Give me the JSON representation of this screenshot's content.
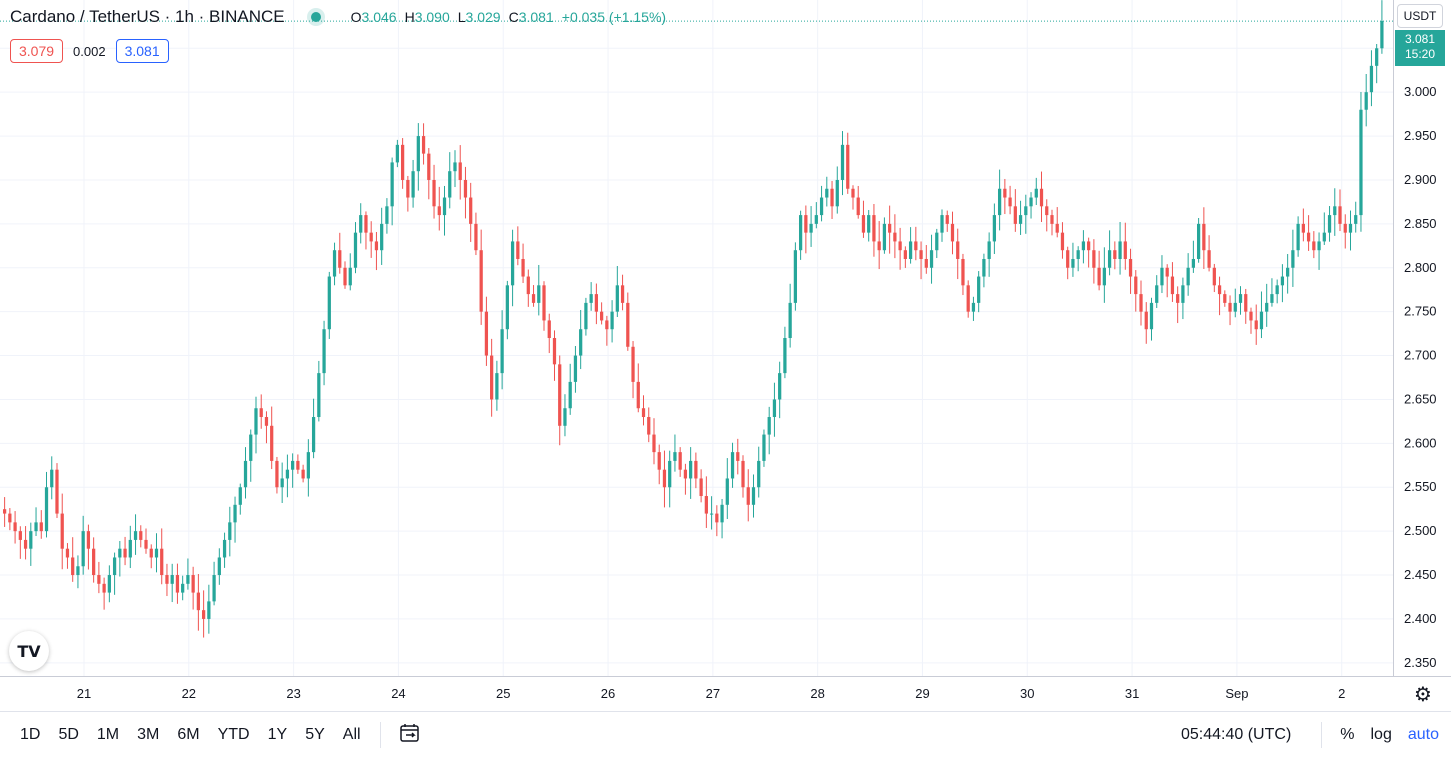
{
  "header": {
    "symbol": "Cardano / TetherUS · 1h · BINANCE",
    "ohlc": {
      "o_label": "O",
      "o_value": "3.046",
      "h_label": "H",
      "h_value": "3.090",
      "l_label": "L",
      "l_value": "3.029",
      "c_label": "C",
      "c_value": "3.081",
      "change": "+0.035 (+1.15%)"
    }
  },
  "quote": {
    "bid": "3.079",
    "spread": "0.002",
    "ask": "3.081"
  },
  "axis": {
    "currency": "USDT",
    "last_price": "3.081",
    "countdown": "15:20"
  },
  "logo": {
    "icon": "tradingview-logo-icon"
  },
  "bottom_bar": {
    "ranges": [
      "1D",
      "5D",
      "1M",
      "3M",
      "6M",
      "YTD",
      "1Y",
      "5Y",
      "All"
    ],
    "calendar_icon": "calendar-range-icon",
    "clock": "05:44:40 (UTC)",
    "percent": "%",
    "log": "log",
    "auto": "auto",
    "settings_icon": "gear-icon"
  },
  "colors": {
    "up": "#26a69a",
    "down": "#ef5350",
    "grid": "#f0f3fa",
    "accent": "#2962ff"
  },
  "chart_data": {
    "type": "candlestick",
    "symbol": "ADAUSDT",
    "interval": "1h",
    "y_ticks": [
      2.35,
      2.4,
      2.45,
      2.5,
      2.55,
      2.6,
      2.65,
      2.7,
      2.75,
      2.8,
      2.85,
      2.9,
      2.95,
      3.0,
      3.05
    ],
    "y_tick_labels": [
      "2.350",
      "2.400",
      "2.450",
      "2.500",
      "2.550",
      "2.600",
      "2.650",
      "2.700",
      "2.750",
      "2.800",
      "2.850",
      "2.900",
      "2.950",
      "3.000",
      "3.050"
    ],
    "ylim": [
      2.335,
      3.105
    ],
    "x_tick_labels": [
      "21",
      "22",
      "23",
      "24",
      "25",
      "26",
      "27",
      "28",
      "29",
      "30",
      "31",
      "Sep",
      "2"
    ],
    "x_tick_hours": [
      0,
      24,
      48,
      72,
      96,
      120,
      144,
      168,
      192,
      216,
      240,
      264,
      288
    ],
    "first_candle_hour": -20,
    "last_price": 3.081,
    "closes": [
      2.52,
      2.51,
      2.5,
      2.49,
      2.48,
      2.5,
      2.51,
      2.5,
      2.55,
      2.57,
      2.52,
      2.48,
      2.47,
      2.45,
      2.46,
      2.5,
      2.48,
      2.45,
      2.44,
      2.43,
      2.45,
      2.47,
      2.48,
      2.47,
      2.49,
      2.5,
      2.49,
      2.48,
      2.47,
      2.48,
      2.45,
      2.44,
      2.45,
      2.43,
      2.44,
      2.45,
      2.43,
      2.41,
      2.4,
      2.42,
      2.45,
      2.47,
      2.49,
      2.51,
      2.53,
      2.55,
      2.58,
      2.61,
      2.64,
      2.63,
      2.62,
      2.58,
      2.55,
      2.56,
      2.57,
      2.58,
      2.57,
      2.56,
      2.59,
      2.63,
      2.68,
      2.73,
      2.79,
      2.82,
      2.8,
      2.78,
      2.8,
      2.84,
      2.86,
      2.84,
      2.83,
      2.82,
      2.85,
      2.87,
      2.92,
      2.94,
      2.9,
      2.88,
      2.91,
      2.95,
      2.93,
      2.9,
      2.87,
      2.86,
      2.88,
      2.91,
      2.92,
      2.9,
      2.88,
      2.85,
      2.82,
      2.75,
      2.7,
      2.65,
      2.68,
      2.73,
      2.78,
      2.83,
      2.81,
      2.79,
      2.77,
      2.76,
      2.78,
      2.74,
      2.72,
      2.69,
      2.62,
      2.64,
      2.67,
      2.7,
      2.73,
      2.76,
      2.77,
      2.75,
      2.74,
      2.73,
      2.75,
      2.78,
      2.76,
      2.71,
      2.67,
      2.64,
      2.63,
      2.61,
      2.59,
      2.57,
      2.55,
      2.58,
      2.59,
      2.57,
      2.56,
      2.58,
      2.56,
      2.54,
      2.52,
      2.52,
      2.51,
      2.53,
      2.56,
      2.59,
      2.58,
      2.55,
      2.53,
      2.55,
      2.58,
      2.61,
      2.63,
      2.65,
      2.68,
      2.72,
      2.76,
      2.82,
      2.86,
      2.84,
      2.85,
      2.86,
      2.88,
      2.89,
      2.87,
      2.9,
      2.94,
      2.89,
      2.88,
      2.86,
      2.84,
      2.86,
      2.83,
      2.82,
      2.85,
      2.84,
      2.83,
      2.82,
      2.81,
      2.83,
      2.82,
      2.81,
      2.8,
      2.82,
      2.84,
      2.86,
      2.85,
      2.83,
      2.81,
      2.78,
      2.75,
      2.76,
      2.79,
      2.81,
      2.83,
      2.86,
      2.89,
      2.88,
      2.87,
      2.85,
      2.86,
      2.87,
      2.88,
      2.89,
      2.87,
      2.86,
      2.85,
      2.84,
      2.82,
      2.8,
      2.81,
      2.82,
      2.83,
      2.82,
      2.8,
      2.78,
      2.8,
      2.82,
      2.81,
      2.83,
      2.81,
      2.79,
      2.77,
      2.75,
      2.73,
      2.76,
      2.78,
      2.8,
      2.79,
      2.77,
      2.76,
      2.78,
      2.8,
      2.81,
      2.85,
      2.82,
      2.8,
      2.78,
      2.77,
      2.76,
      2.75,
      2.76,
      2.77,
      2.75,
      2.74,
      2.73,
      2.75,
      2.76,
      2.77,
      2.78,
      2.79,
      2.8,
      2.82,
      2.85,
      2.84,
      2.83,
      2.82,
      2.83,
      2.84,
      2.86,
      2.87,
      2.85,
      2.84,
      2.85,
      2.86,
      2.98,
      3.0,
      3.03,
      3.05,
      3.081
    ]
  }
}
